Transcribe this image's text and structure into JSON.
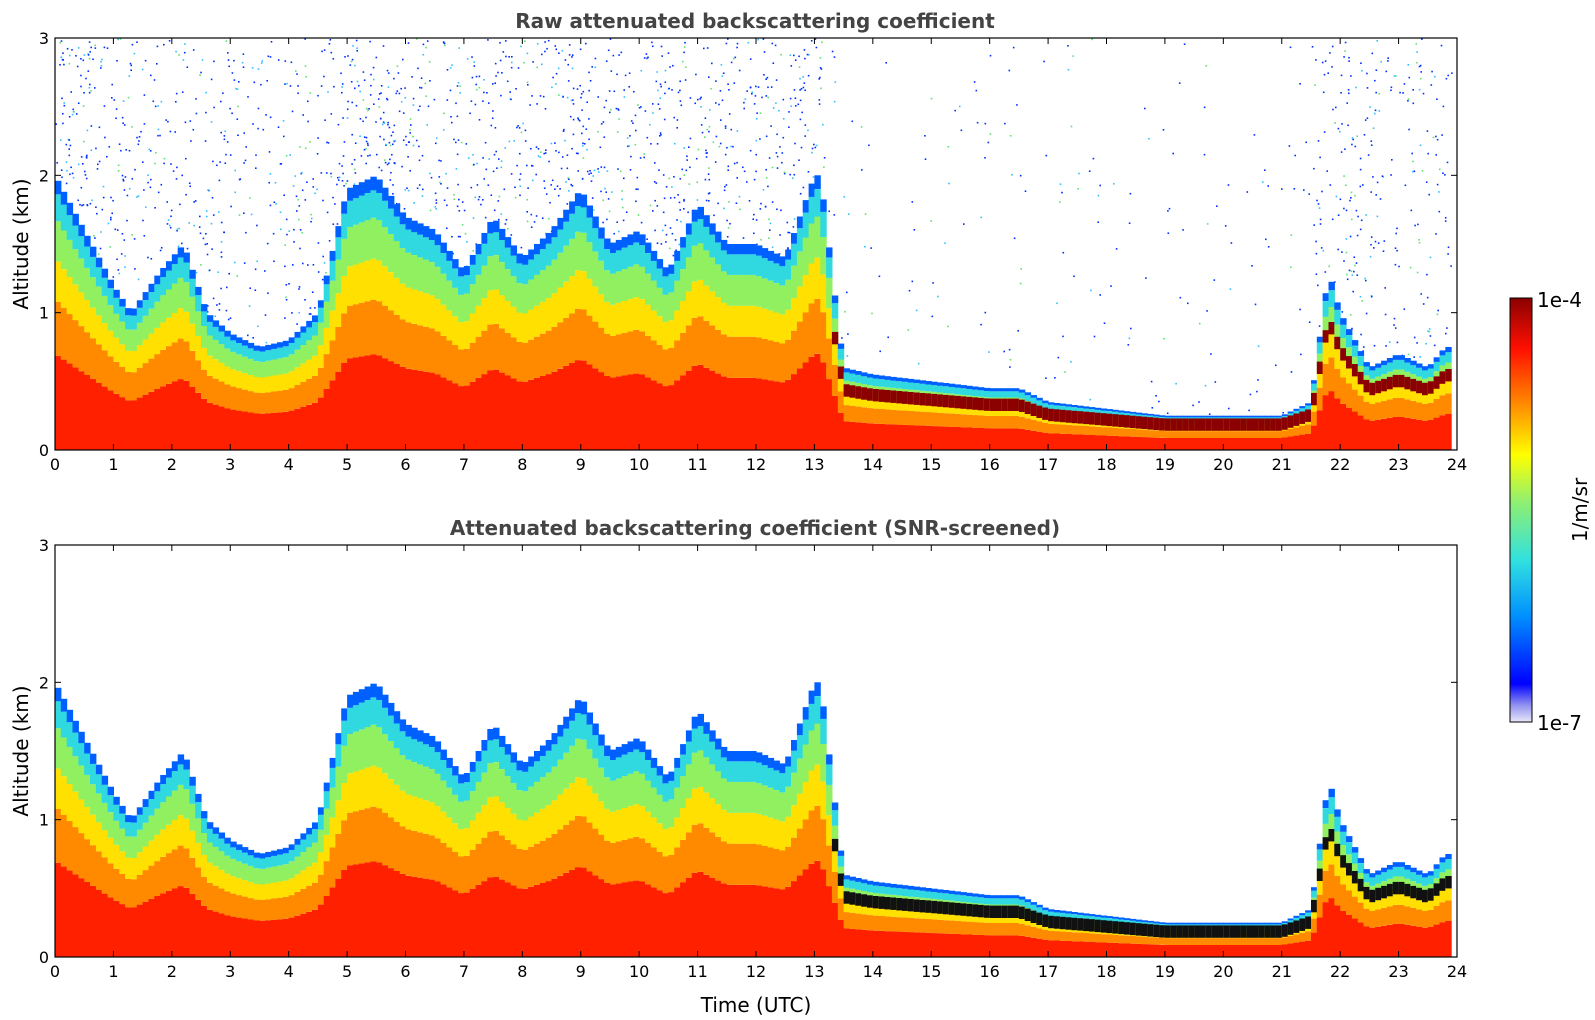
{
  "chart_data": [
    {
      "type": "heatmap",
      "title": "Raw attenuated backscattering coefficient",
      "xlabel": "",
      "ylabel": "Altitude (km)",
      "xlim": [
        0,
        24
      ],
      "ylim": [
        0,
        3
      ],
      "xticks": [
        "0",
        "1",
        "2",
        "3",
        "4",
        "5",
        "6",
        "7",
        "8",
        "9",
        "10",
        "11",
        "12",
        "13",
        "14",
        "15",
        "16",
        "17",
        "18",
        "19",
        "20",
        "21",
        "22",
        "23",
        "24"
      ],
      "yticks": [
        "0",
        "1",
        "2",
        "3"
      ],
      "screened": false,
      "boundary_layer_top_km": {
        "time": [
          0,
          0.5,
          1,
          1.3,
          1.8,
          2.2,
          2.6,
          3,
          3.5,
          4,
          4.5,
          5,
          5.5,
          6,
          6.5,
          7,
          7.5,
          8,
          8.5,
          9,
          9.5,
          10,
          10.5,
          11,
          11.5,
          12,
          12.5,
          13,
          13.1,
          13.5,
          14,
          15,
          16,
          16.5,
          17,
          18,
          19,
          20,
          21,
          21.5,
          21.8,
          22,
          22.5,
          23,
          23.5,
          23.8
        ],
        "height": [
          2.0,
          1.6,
          1.2,
          1.0,
          1.3,
          1.5,
          1.0,
          0.85,
          0.75,
          0.8,
          1.0,
          1.9,
          2.0,
          1.7,
          1.6,
          1.3,
          1.7,
          1.4,
          1.6,
          1.9,
          1.5,
          1.6,
          1.3,
          1.8,
          1.5,
          1.5,
          1.4,
          2.0,
          2.0,
          0.6,
          0.55,
          0.5,
          0.45,
          0.45,
          0.35,
          0.3,
          0.25,
          0.25,
          0.25,
          0.35,
          1.3,
          1.0,
          0.6,
          0.7,
          0.6,
          0.75
        ]
      }
    },
    {
      "type": "heatmap",
      "title": "Attenuated backscattering coefficient (SNR-screened)",
      "xlabel": "Time (UTC)",
      "ylabel": "Altitude (km)",
      "xlim": [
        0,
        24
      ],
      "ylim": [
        0,
        3
      ],
      "xticks": [
        "0",
        "1",
        "2",
        "3",
        "4",
        "5",
        "6",
        "7",
        "8",
        "9",
        "10",
        "11",
        "12",
        "13",
        "14",
        "15",
        "16",
        "17",
        "18",
        "19",
        "20",
        "21",
        "22",
        "23",
        "24"
      ],
      "yticks": [
        "0",
        "1",
        "2",
        "3"
      ],
      "screened": true,
      "boundary_layer_top_km": {
        "time": [
          0,
          0.5,
          1,
          1.3,
          1.8,
          2.2,
          2.6,
          3,
          3.5,
          4,
          4.5,
          5,
          5.5,
          6,
          6.5,
          7,
          7.5,
          8,
          8.5,
          9,
          9.5,
          10,
          10.5,
          11,
          11.5,
          12,
          12.5,
          13,
          13.1,
          13.5,
          14,
          15,
          16,
          16.5,
          17,
          18,
          19,
          20,
          21,
          21.5,
          21.8,
          22,
          22.5,
          23,
          23.5,
          23.8
        ],
        "height": [
          2.0,
          1.6,
          1.2,
          1.0,
          1.3,
          1.5,
          1.0,
          0.85,
          0.75,
          0.8,
          1.0,
          1.9,
          2.0,
          1.7,
          1.6,
          1.3,
          1.7,
          1.4,
          1.6,
          1.9,
          1.5,
          1.6,
          1.3,
          1.8,
          1.5,
          1.5,
          1.4,
          2.0,
          2.0,
          0.6,
          0.55,
          0.5,
          0.45,
          0.45,
          0.35,
          0.3,
          0.25,
          0.25,
          0.25,
          0.35,
          1.3,
          1.0,
          0.6,
          0.7,
          0.6,
          0.75
        ]
      }
    }
  ],
  "colorbar": {
    "min_label": "1e-7",
    "max_label": "1e-4",
    "unit_label": "1/m/sr",
    "colormap": "jet",
    "colors": [
      "#e8e8f8",
      "#0000ff",
      "#00a0ff",
      "#40e0d0",
      "#a0f060",
      "#ffff00",
      "#ff8000",
      "#ff0000",
      "#8b0000"
    ]
  }
}
